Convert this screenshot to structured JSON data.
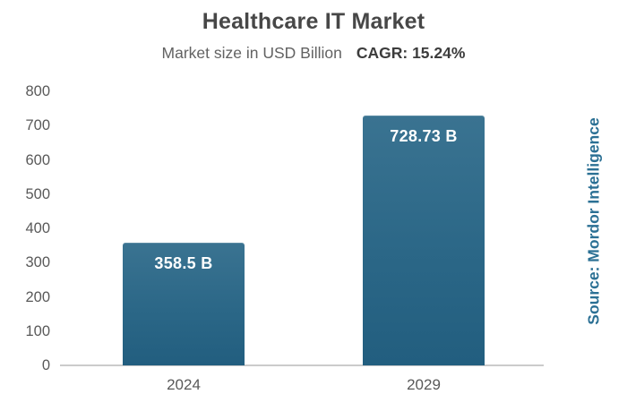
{
  "header": {
    "title": "Healthcare IT Market",
    "subtitle": "Market size in USD Billion",
    "cagr": "CAGR: 15.24%"
  },
  "source": {
    "text": "Source: Mordor Intelligence"
  },
  "colors": {
    "bar_fill": "#2b6787",
    "bar_label": "#ffffff",
    "axis_line": "#cbcbcb",
    "tick_text": "#595959",
    "title_text": "#474747",
    "source_text": "#2b7094"
  },
  "chart_data": {
    "type": "bar",
    "title": "Healthcare IT Market",
    "subtitle": "Market size in USD Billion",
    "annotation": "CAGR: 15.24%",
    "categories": [
      "2024",
      "2029"
    ],
    "values": [
      358.5,
      728.73
    ],
    "value_labels": [
      "358.5 B",
      "728.73 B"
    ],
    "xlabel": "",
    "ylabel": "",
    "ylim": [
      0,
      800
    ],
    "yticks": [
      0,
      100,
      200,
      300,
      400,
      500,
      600,
      700,
      800
    ],
    "grid": false,
    "legend": false,
    "source": "Source: Mordor Intelligence"
  }
}
